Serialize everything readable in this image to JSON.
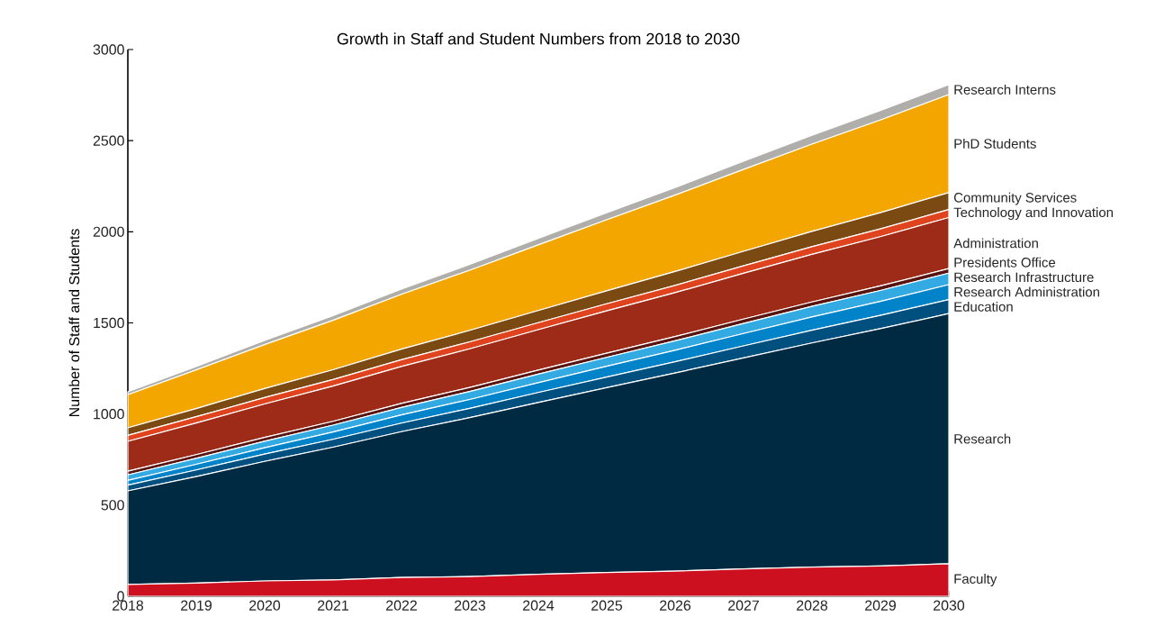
{
  "chart_data": {
    "type": "area",
    "stacked": true,
    "title": "Growth in Staff and Student Numbers from 2018 to 2030",
    "ylabel": "Number of Staff and Students",
    "x": [
      2018,
      2019,
      2020,
      2021,
      2022,
      2023,
      2024,
      2025,
      2026,
      2027,
      2028,
      2029,
      2030
    ],
    "xlim": [
      2018,
      2030
    ],
    "xticks": [
      2018,
      2019,
      2020,
      2021,
      2022,
      2023,
      2024,
      2025,
      2026,
      2027,
      2028,
      2029,
      2030
    ],
    "ylim": [
      0,
      3000
    ],
    "yticks": [
      0,
      500,
      1000,
      1500,
      2000,
      2500,
      3000
    ],
    "series": [
      {
        "name": "Faculty",
        "color": "#cc1020",
        "values": [
          65,
          72,
          84,
          90,
          103,
          108,
          120,
          130,
          138,
          150,
          160,
          166,
          178
        ]
      },
      {
        "name": "Research",
        "color": "#002a42",
        "values": [
          513,
          585,
          656,
          728,
          800,
          872,
          943,
          1015,
          1087,
          1158,
          1230,
          1302,
          1373
        ]
      },
      {
        "name": "Education",
        "color": "#00507f",
        "values": [
          32,
          36,
          40,
          43,
          47,
          51,
          55,
          58,
          62,
          66,
          70,
          73,
          77
        ]
      },
      {
        "name": "Research Administration",
        "color": "#0083c8",
        "values": [
          26,
          31,
          35,
          40,
          45,
          49,
          54,
          59,
          63,
          68,
          73,
          77,
          82
        ]
      },
      {
        "name": "Research Infrastructure",
        "color": "#33aae2",
        "values": [
          30,
          33,
          36,
          38,
          41,
          44,
          47,
          49,
          52,
          55,
          58,
          60,
          63
        ]
      },
      {
        "name": "Presidents Office",
        "color": "#5a1410",
        "values": [
          20,
          20,
          21,
          21,
          22,
          22,
          22,
          23,
          23,
          24,
          24,
          25,
          25
        ]
      },
      {
        "name": "Administration",
        "color": "#9e2a18",
        "values": [
          164,
          174,
          183,
          193,
          203,
          212,
          222,
          232,
          241,
          251,
          261,
          270,
          280
        ]
      },
      {
        "name": "Technology and Innovation",
        "color": "#e0441e",
        "values": [
          33,
          34,
          35,
          36,
          37,
          38,
          38,
          39,
          40,
          41,
          42,
          43,
          44
        ]
      },
      {
        "name": "Community Services",
        "color": "#7a4a12",
        "values": [
          41,
          45,
          50,
          54,
          58,
          63,
          67,
          71,
          76,
          80,
          84,
          89,
          93
        ]
      },
      {
        "name": "PhD Students",
        "color": "#f4a600",
        "values": [
          182,
          212,
          241,
          271,
          301,
          330,
          360,
          390,
          419,
          449,
          479,
          508,
          538
        ]
      },
      {
        "name": "Research Interns",
        "color": "#b0aeaa",
        "values": [
          16,
          19,
          23,
          26,
          29,
          32,
          36,
          39,
          42,
          45,
          49,
          52,
          55
        ]
      }
    ]
  }
}
